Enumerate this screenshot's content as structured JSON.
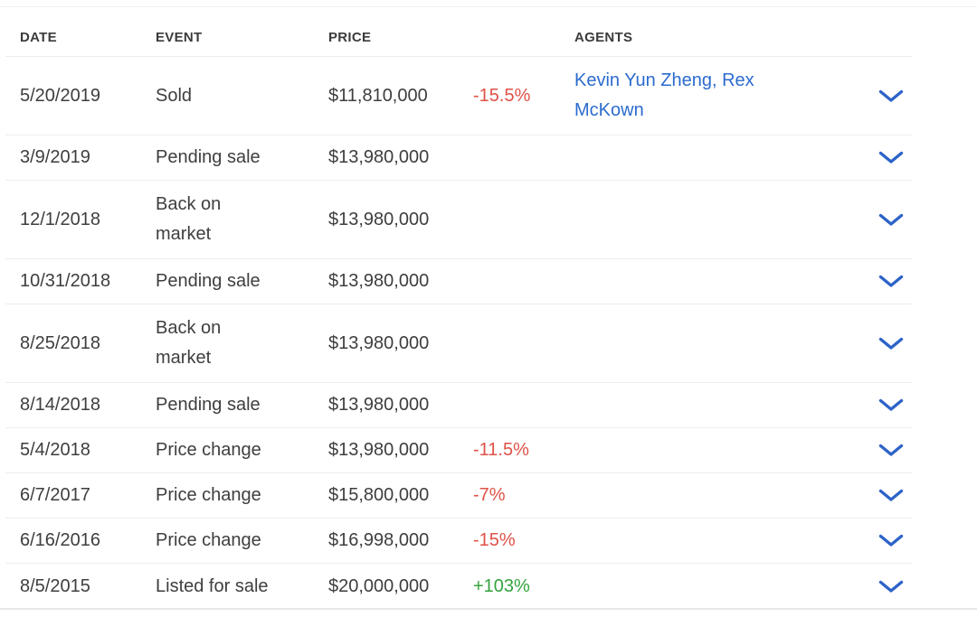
{
  "colors": {
    "negative": "#df5147",
    "positive": "#35a33e",
    "link": "#2b6bce",
    "chevron": "#2d63c8",
    "text": "#3e3e3e",
    "header_text": "#3b3b3b",
    "divider": "#ededed"
  },
  "table": {
    "headers": {
      "date": "DATE",
      "event": "EVENT",
      "price": "PRICE",
      "agents": "AGENTS"
    },
    "expand_icon": "chevron-down",
    "rows": [
      {
        "date": "5/20/2019",
        "event": "Sold",
        "price": "$11,810,000",
        "change": "-15.5%",
        "change_type": "negative",
        "agents": [
          "Kevin Yun Zheng",
          "Rex McKown"
        ]
      },
      {
        "date": "3/9/2019",
        "event": "Pending sale",
        "price": "$13,980,000",
        "change": "",
        "change_type": "",
        "agents": []
      },
      {
        "date": "12/1/2018",
        "event": "Back on\nmarket",
        "price": "$13,980,000",
        "change": "",
        "change_type": "",
        "agents": []
      },
      {
        "date": "10/31/2018",
        "event": "Pending sale",
        "price": "$13,980,000",
        "change": "",
        "change_type": "",
        "agents": []
      },
      {
        "date": "8/25/2018",
        "event": "Back on\nmarket",
        "price": "$13,980,000",
        "change": "",
        "change_type": "",
        "agents": []
      },
      {
        "date": "8/14/2018",
        "event": "Pending sale",
        "price": "$13,980,000",
        "change": "",
        "change_type": "",
        "agents": []
      },
      {
        "date": "5/4/2018",
        "event": "Price change",
        "price": "$13,980,000",
        "change": "-11.5%",
        "change_type": "negative",
        "agents": []
      },
      {
        "date": "6/7/2017",
        "event": "Price change",
        "price": "$15,800,000",
        "change": "-7%",
        "change_type": "negative",
        "agents": []
      },
      {
        "date": "6/16/2016",
        "event": "Price change",
        "price": "$16,998,000",
        "change": "-15%",
        "change_type": "negative",
        "agents": []
      },
      {
        "date": "8/5/2015",
        "event": "Listed for sale",
        "price": "$20,000,000",
        "change": "+103%",
        "change_type": "positive",
        "agents": []
      }
    ]
  }
}
